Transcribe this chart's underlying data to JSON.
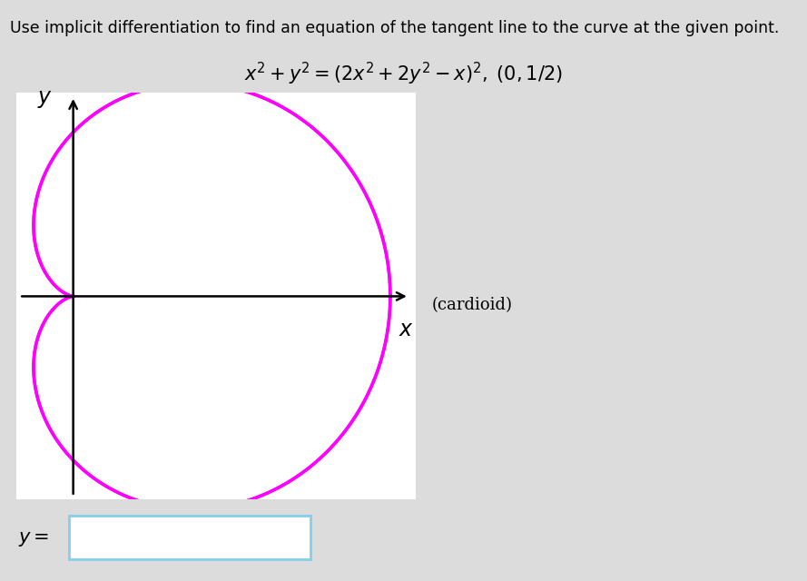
{
  "title_text": "Use implicit differentiation to find an equation of the tangent line to the curve at the given point.",
  "equation_text": "$x^2 + y^2 = (2x^2 + 2y^2 - x)^2, \\; (0, 1/2)$",
  "cardioid_label": "(cardioid)",
  "x_label": "$x$",
  "y_label": "$y$",
  "curve_color": "#FF00FF",
  "curve_linewidth": 2.5,
  "axis_color": "#000000",
  "background_color": "#FFFFFF",
  "outer_background": "#DCDCDC",
  "title_fontsize": 12.5,
  "equation_fontsize": 15,
  "axis_label_fontsize": 17,
  "cardioid_fontsize": 13
}
